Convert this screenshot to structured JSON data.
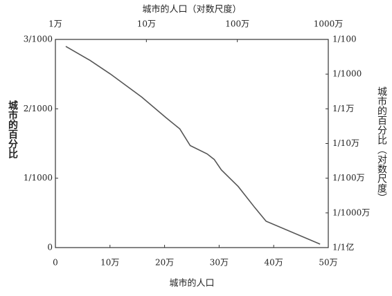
{
  "chart_data": {
    "type": "line",
    "xlabel": "城市的人口",
    "x2label": "城市的人口（对数尺度）",
    "ylabel": "城市的百分比",
    "y2label": "城市的百分比（对数尺度）",
    "xlim": [
      0,
      50
    ],
    "xticks": [
      {
        "value": 0,
        "label": "0"
      },
      {
        "value": 10,
        "label": "10万"
      },
      {
        "value": 20,
        "label": "20万"
      },
      {
        "value": 30,
        "label": "30万"
      },
      {
        "value": 40,
        "label": "40万"
      },
      {
        "value": 50,
        "label": "50万"
      }
    ],
    "x2lim": [
      1,
      1000
    ],
    "x2log": true,
    "x2ticks": [
      {
        "value": 1,
        "label": "1万"
      },
      {
        "value": 10,
        "label": "10万"
      },
      {
        "value": 100,
        "label": "100万"
      },
      {
        "value": 1000,
        "label": "1000万"
      }
    ],
    "ylim": [
      0,
      0.003
    ],
    "yticks": [
      {
        "value": 0,
        "label": "0"
      },
      {
        "value": 0.001,
        "label": "1/1000"
      },
      {
        "value": 0.002,
        "label": "2/1000"
      },
      {
        "value": 0.003,
        "label": "3/1000"
      }
    ],
    "y2lim": [
      1e-08,
      0.01
    ],
    "y2log": true,
    "y2ticks": [
      {
        "value": 0.01,
        "label": "1/100"
      },
      {
        "value": 0.001,
        "label": "1/1000"
      },
      {
        "value": 0.0001,
        "label": "1/1万"
      },
      {
        "value": 1e-05,
        "label": "1/10万"
      },
      {
        "value": 1e-06,
        "label": "1/100万"
      },
      {
        "value": 1e-07,
        "label": "1/1000万"
      },
      {
        "value": 1e-08,
        "label": "1/1亿"
      }
    ],
    "x": [
      1.9,
      6.3,
      10.1,
      12.7,
      15.8,
      20.3,
      22.8,
      24.7,
      27.8,
      29.1,
      30.4,
      33.5,
      36.5,
      38.6,
      48.5
    ],
    "series": [
      {
        "color": "#555555",
        "values": [
          0.0029,
          0.0027,
          0.0025,
          0.00235,
          0.00217,
          0.00187,
          0.00171,
          0.00147,
          0.00135,
          0.00127,
          0.00112,
          0.00088,
          0.00058,
          0.00038,
          5e-05
        ]
      }
    ]
  }
}
